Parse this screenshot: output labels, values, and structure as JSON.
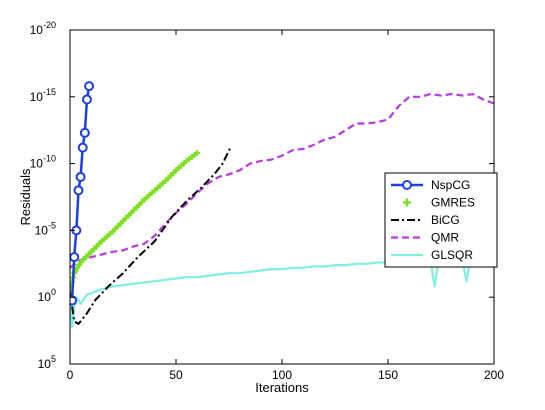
{
  "chart_data": {
    "type": "line",
    "title": "",
    "xlabel": "Iterations",
    "ylabel": "Residuals",
    "xlim": [
      0,
      200
    ],
    "ylim_exponent": [
      -20,
      5
    ],
    "yscale": "log",
    "x_ticks": [
      0,
      50,
      100,
      150,
      200
    ],
    "x_tick_labels": [
      "0",
      "50",
      "100",
      "150",
      "200"
    ],
    "y_ticks": [
      5,
      0,
      -5,
      -10,
      -15,
      -20
    ],
    "y_tick_base": "10",
    "y_tick_exponents": [
      "5",
      "0",
      "-5",
      "-10",
      "-15",
      "-20"
    ],
    "grid": false,
    "legend_position": "right",
    "series": [
      {
        "name": "NspCG",
        "color": "#1f3fdc",
        "style": "line-circle",
        "x": [
          1,
          2,
          3,
          4,
          5,
          6,
          7,
          8,
          9
        ],
        "log10_y": [
          0.25,
          -3.0,
          -5.0,
          -8.0,
          -9.0,
          -11.2,
          -12.3,
          -14.8,
          -15.8
        ]
      },
      {
        "name": "GMRES",
        "color": "#7fe026",
        "style": "plus",
        "x": [
          0,
          2,
          5,
          10,
          15,
          20,
          25,
          30,
          35,
          40,
          45,
          50,
          55,
          60
        ],
        "log10_y": [
          -0.5,
          -1.8,
          -2.6,
          -3.4,
          -4.2,
          -4.9,
          -5.7,
          -6.5,
          -7.3,
          -8.0,
          -8.7,
          -9.5,
          -10.2,
          -10.8
        ]
      },
      {
        "name": "BiCG",
        "color": "#000000",
        "style": "dash-dot",
        "x": [
          0,
          2,
          4,
          8,
          12,
          18,
          25,
          32,
          40,
          48,
          55,
          62,
          68,
          72,
          76
        ],
        "log10_y": [
          -0.5,
          1.8,
          2.0,
          1.2,
          0.2,
          -0.8,
          -1.8,
          -3.0,
          -4.2,
          -6.0,
          -7.2,
          -8.2,
          -9.2,
          -10.0,
          -11.3
        ]
      },
      {
        "name": "QMR",
        "color": "#b33be0",
        "style": "dashed",
        "x": [
          0,
          5,
          10,
          15,
          20,
          25,
          30,
          35,
          40,
          45,
          50,
          55,
          60,
          65,
          70,
          75,
          80,
          85,
          90,
          95,
          100,
          105,
          110,
          115,
          120,
          125,
          130,
          135,
          140,
          145,
          150,
          155,
          160,
          165,
          170,
          175,
          180,
          185,
          190,
          195,
          200
        ],
        "log10_y": [
          -2.2,
          -2.8,
          -3.0,
          -3.2,
          -3.4,
          -3.5,
          -3.8,
          -4.0,
          -4.6,
          -5.5,
          -6.3,
          -7.0,
          -7.8,
          -8.5,
          -9.0,
          -9.2,
          -9.5,
          -10.0,
          -10.2,
          -10.3,
          -10.6,
          -11.0,
          -11.1,
          -11.4,
          -11.8,
          -12.0,
          -12.5,
          -13.0,
          -13.0,
          -13.1,
          -13.3,
          -14.3,
          -15.0,
          -15.0,
          -15.2,
          -15.1,
          -15.2,
          -15.1,
          -15.2,
          -14.8,
          -14.5
        ]
      },
      {
        "name": "GLSQR",
        "color": "#7ff0e0",
        "style": "line",
        "x": [
          0,
          1,
          2,
          3,
          5,
          8,
          10,
          15,
          20,
          25,
          30,
          35,
          40,
          45,
          50,
          55,
          60,
          65,
          70,
          75,
          80,
          85,
          90,
          95,
          100,
          105,
          110,
          115,
          120,
          125,
          130,
          135,
          140,
          145,
          150,
          155,
          160,
          165,
          170,
          172,
          174,
          176,
          180,
          185,
          187,
          189,
          191,
          195,
          200
        ],
        "log10_y": [
          -0.5,
          2.2,
          0.8,
          0.0,
          0.5,
          -0.2,
          -0.3,
          -0.6,
          -0.8,
          -0.9,
          -1.0,
          -1.1,
          -1.2,
          -1.3,
          -1.4,
          -1.5,
          -1.5,
          -1.6,
          -1.7,
          -1.8,
          -1.8,
          -1.9,
          -2.0,
          -2.1,
          -2.1,
          -2.2,
          -2.2,
          -2.3,
          -2.3,
          -2.4,
          -2.4,
          -2.5,
          -2.5,
          -2.6,
          -2.6,
          -2.7,
          -2.7,
          -2.8,
          -2.8,
          -0.8,
          -2.9,
          -2.5,
          -2.9,
          -2.9,
          -1.2,
          -3.0,
          -2.6,
          -3.0,
          -3.2
        ]
      }
    ]
  }
}
